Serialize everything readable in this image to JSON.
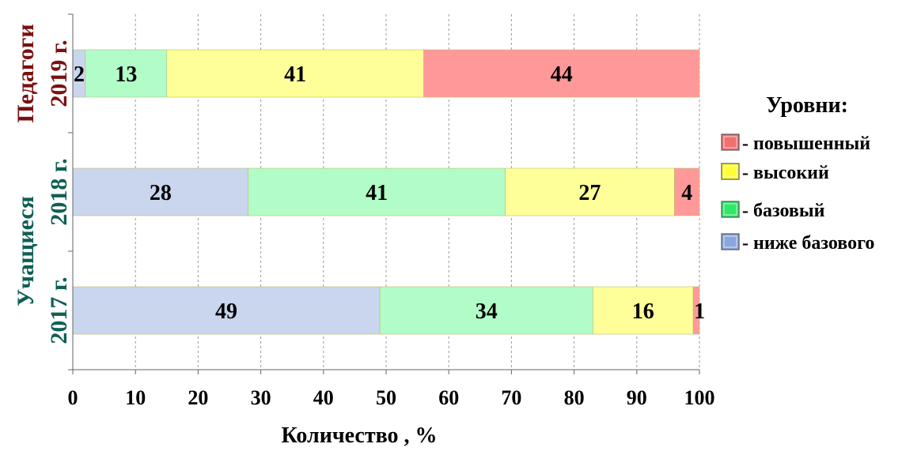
{
  "chart_data": {
    "type": "bar",
    "orientation": "horizontal",
    "stacked": true,
    "categories": [
      "2017 г.",
      "2018 г.",
      "2019 г."
    ],
    "group_labels": [
      {
        "label": "Учащиеся",
        "categories": [
          "2017 г.",
          "2018 г."
        ],
        "color": "#0f5f54"
      },
      {
        "label": "Педагоги",
        "categories": [
          "2019 г."
        ],
        "color": "#7a1010"
      }
    ],
    "category_colors": [
      "#0f5f54",
      "#0f5f54",
      "#7a1010"
    ],
    "series": [
      {
        "name": "- ниже базового",
        "values": [
          49,
          28,
          2
        ],
        "color": "#c9d6ee",
        "swatch": "#8aa6dc"
      },
      {
        "name": "- базовый",
        "values": [
          34,
          41,
          13
        ],
        "color": "#b2fcc8",
        "swatch": "#2ee866"
      },
      {
        "name": "- высокий",
        "values": [
          16,
          27,
          41
        ],
        "color": "#ffff99",
        "swatch": "#ffff33"
      },
      {
        "name": "- повышенный",
        "values": [
          1,
          4,
          44
        ],
        "color": "#ff9999",
        "swatch": "#f07070"
      }
    ],
    "xlabel": "Количество , %",
    "xlim": [
      0,
      100
    ],
    "xticks": [
      "0",
      "10",
      "20",
      "30",
      "40",
      "50",
      "60",
      "70",
      "80",
      "90",
      "100"
    ],
    "grid": "vertical dashed",
    "legend": {
      "title": "Уровни:",
      "position": "right",
      "order": [
        "- повышенный",
        "- высокий",
        "- базовый",
        "- ниже базового"
      ]
    }
  }
}
